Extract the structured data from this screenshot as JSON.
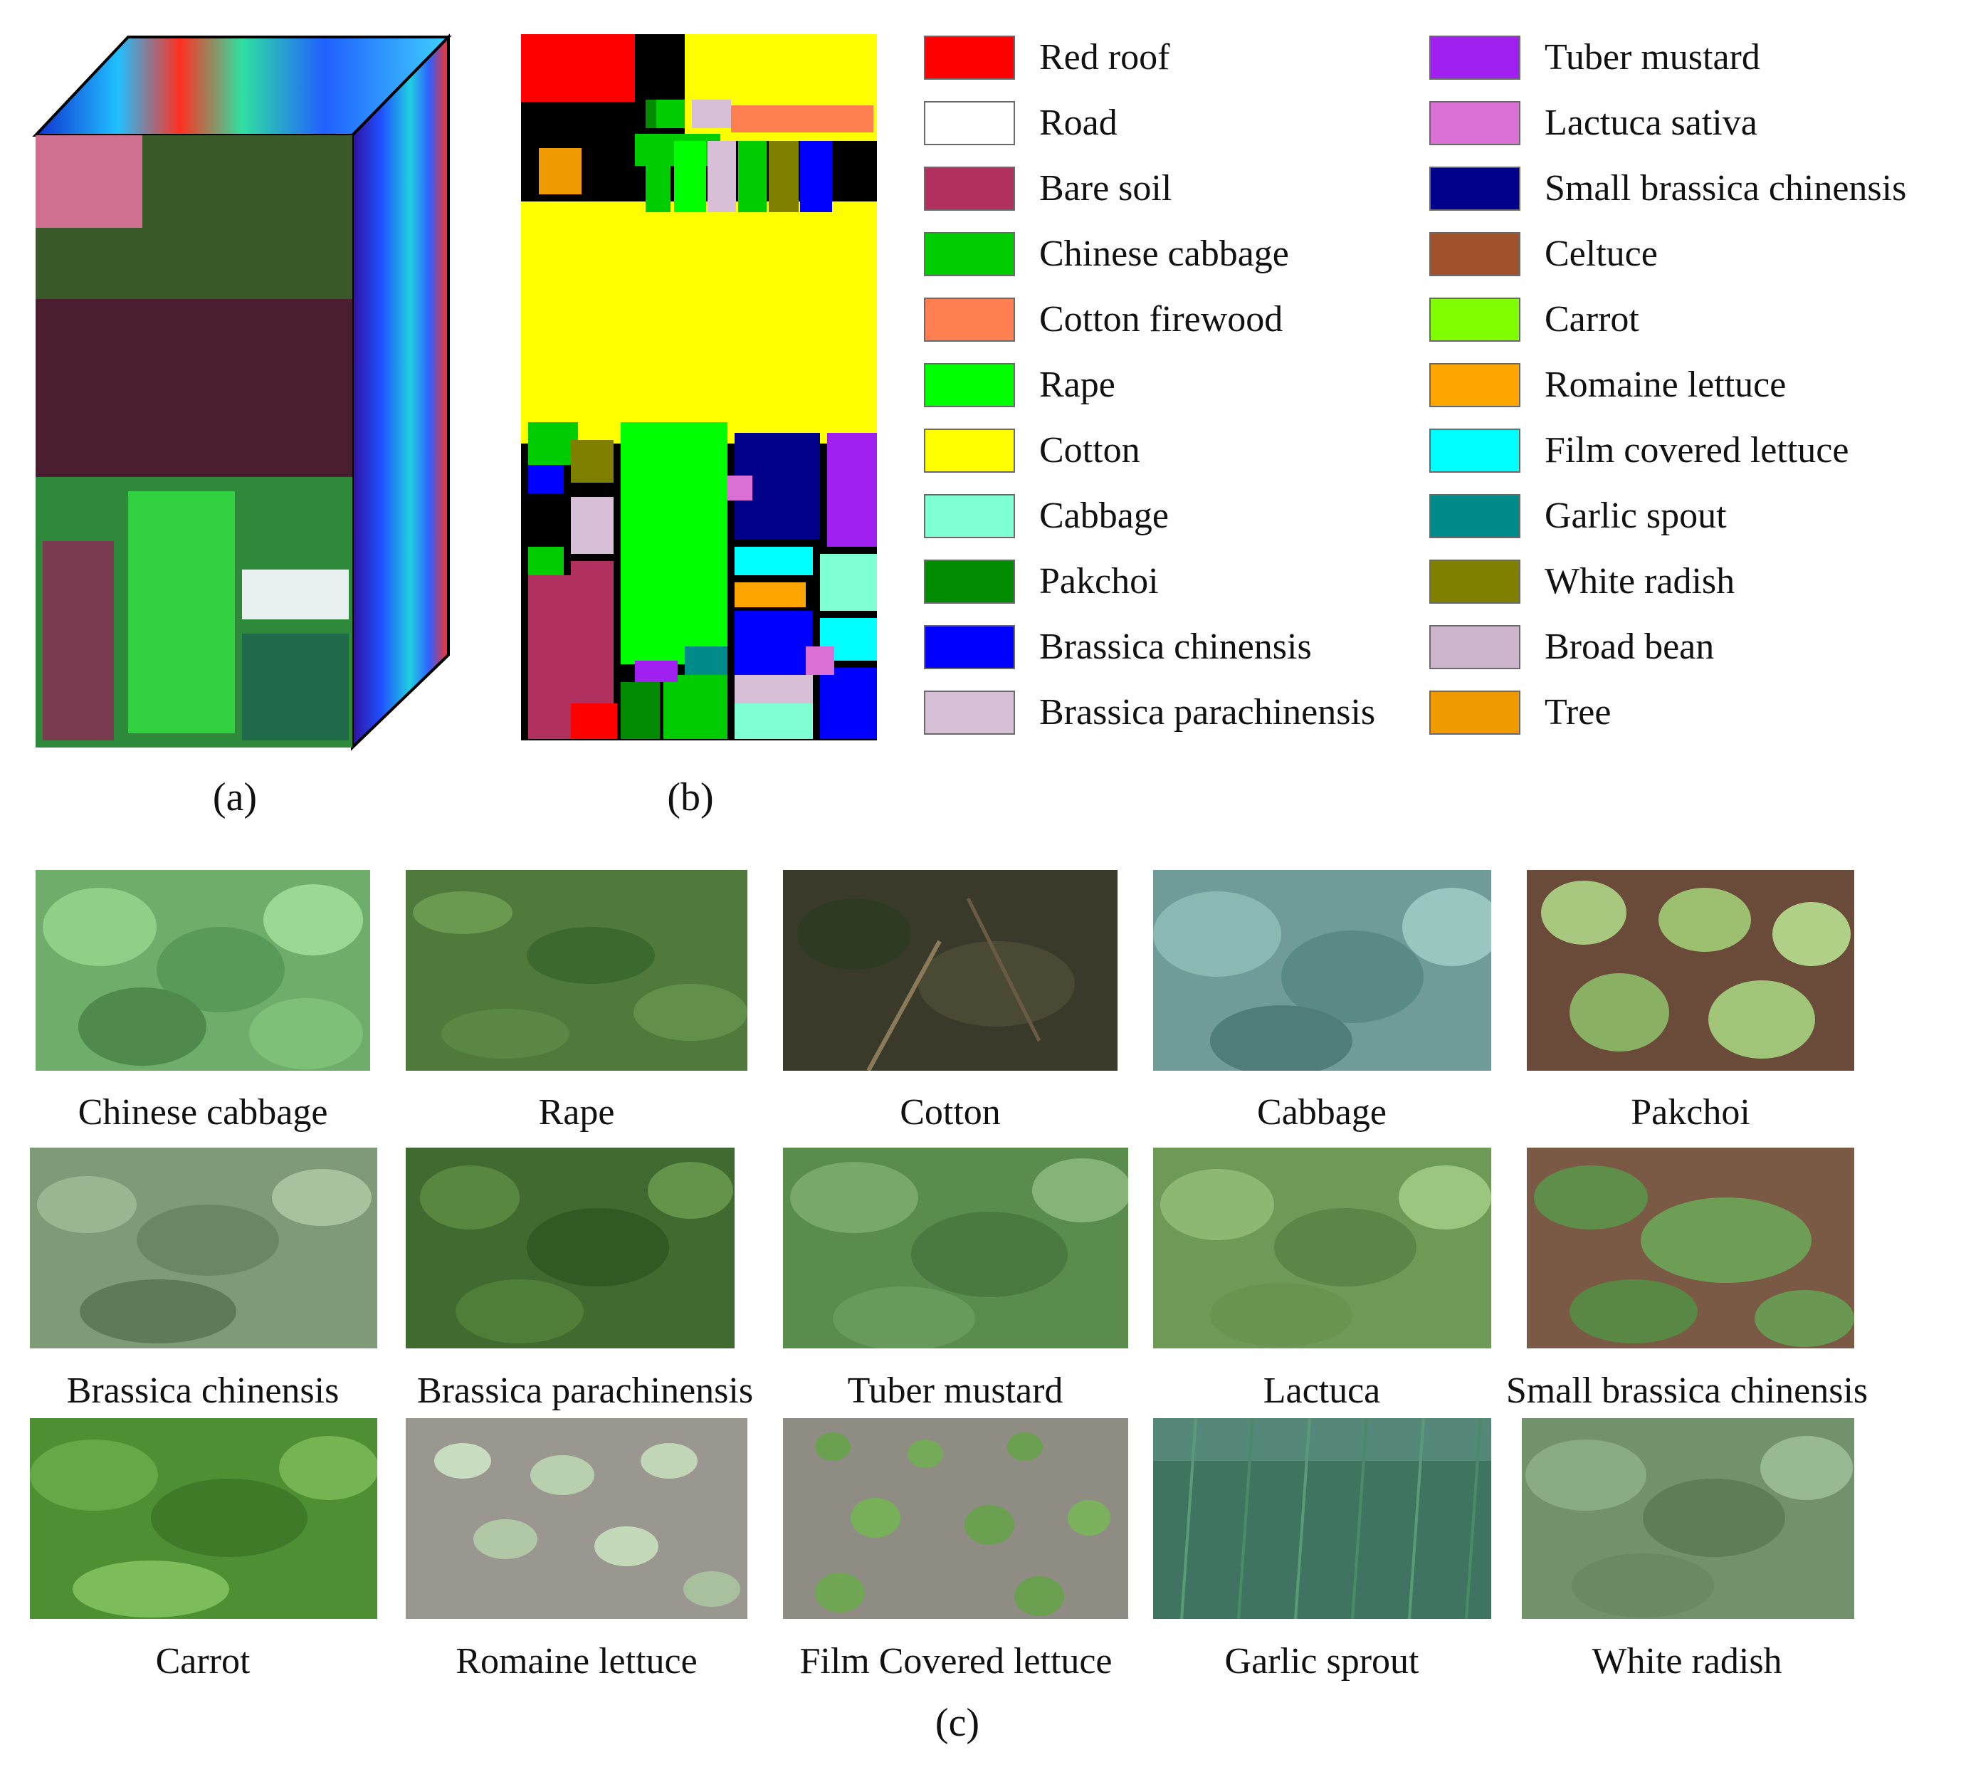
{
  "panel_captions": {
    "a": "(a)",
    "b": "(b)",
    "c": "(c)"
  },
  "legend": {
    "column1": [
      {
        "label": "Red roof",
        "color": "#ff0000"
      },
      {
        "label": "Road",
        "color": "#ffffff"
      },
      {
        "label": "Bare soil",
        "color": "#b03060"
      },
      {
        "label": "Chinese cabbage",
        "color": "#00cd00"
      },
      {
        "label": "Cotton firewood",
        "color": "#ff7f50"
      },
      {
        "label": "Rape",
        "color": "#00ff00"
      },
      {
        "label": "Cotton",
        "color": "#ffff00"
      },
      {
        "label": "Cabbage",
        "color": "#7fffd4"
      },
      {
        "label": "Pakchoi",
        "color": "#008b00"
      },
      {
        "label": "Brassica chinensis",
        "color": "#0000ff"
      },
      {
        "label": "Brassica parachinensis",
        "color": "#d8bfd8"
      }
    ],
    "column2": [
      {
        "label": "Tuber mustard",
        "color": "#a020f0"
      },
      {
        "label": "Lactuca sativa",
        "color": "#da70d6"
      },
      {
        "label": "Small brassica chinensis",
        "color": "#00008b"
      },
      {
        "label": "Celtuce",
        "color": "#a0522d"
      },
      {
        "label": "Carrot",
        "color": "#7fff00"
      },
      {
        "label": "Romaine lettuce",
        "color": "#ffa500"
      },
      {
        "label": "Film covered lettuce",
        "color": "#00ffff"
      },
      {
        "label": "Garlic spout",
        "color": "#008b8b"
      },
      {
        "label": "White radish",
        "color": "#808000"
      },
      {
        "label": "Broad bean",
        "color": "#cdb5cd"
      },
      {
        "label": "Tree",
        "color": "#ee9a00"
      }
    ]
  },
  "photos": [
    {
      "label": "Chinese cabbage",
      "color": "#6fae6a"
    },
    {
      "label": "Rape",
      "color": "#4f7a3c"
    },
    {
      "label": "Cotton",
      "color": "#3a3a2a"
    },
    {
      "label": "Cabbage",
      "color": "#6f9c98"
    },
    {
      "label": "Pakchoi",
      "color": "#8aa860"
    },
    {
      "label": "Brassica chinensis",
      "color": "#7f9a76"
    },
    {
      "label": "Brassica parachinensis",
      "color": "#3f6a30"
    },
    {
      "label": "Tuber mustard",
      "color": "#5a8c4e"
    },
    {
      "label": "Lactuca",
      "color": "#6e9a58"
    },
    {
      "label": "Small brassica chinensis",
      "color": "#5f8e4a"
    },
    {
      "label": "Carrot",
      "color": "#4f8f34"
    },
    {
      "label": "Romaine lettuce",
      "color": "#9a9690"
    },
    {
      "label": "Film Covered lettuce",
      "color": "#8f8c84"
    },
    {
      "label": "Garlic sprout",
      "color": "#3f7460"
    },
    {
      "label": "White radish",
      "color": "#72926c"
    }
  ]
}
